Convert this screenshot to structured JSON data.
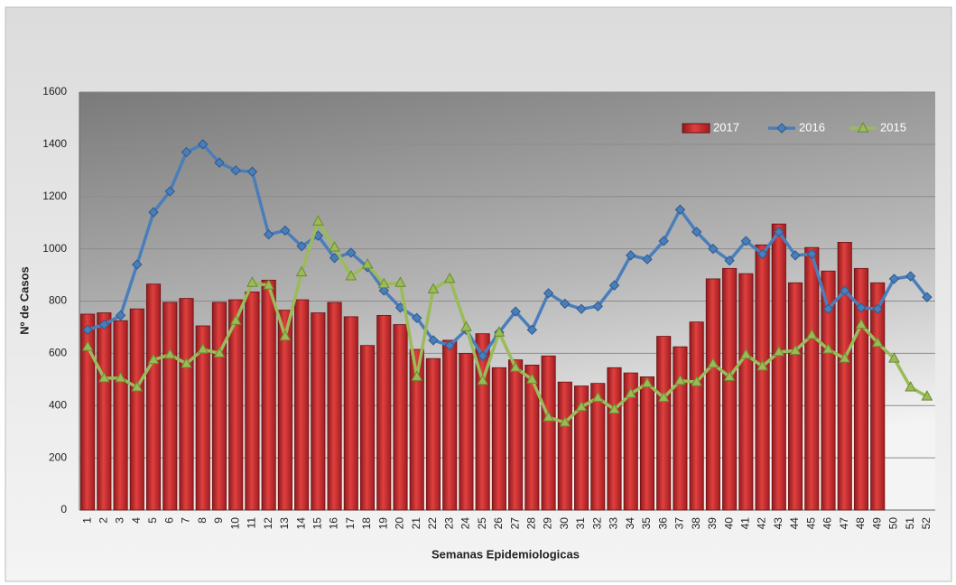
{
  "chart_data": {
    "type": "bar_line",
    "xlabel": "Semanas Epidemiologicas",
    "ylabel": "Nº de Casos",
    "categories": [
      "1",
      "2",
      "3",
      "4",
      "5",
      "6",
      "7",
      "8",
      "9",
      "10",
      "11",
      "12",
      "13",
      "14",
      "15",
      "16",
      "17",
      "18",
      "19",
      "20",
      "21",
      "22",
      "23",
      "24",
      "25",
      "26",
      "27",
      "28",
      "29",
      "30",
      "31",
      "32",
      "33",
      "34",
      "35",
      "36",
      "37",
      "38",
      "39",
      "40",
      "41",
      "42",
      "43",
      "44",
      "45",
      "46",
      "47",
      "48",
      "49",
      "50",
      "51",
      "52"
    ],
    "ylim": [
      0,
      1600
    ],
    "yticks": [
      0,
      200,
      400,
      600,
      800,
      1000,
      1200,
      1400,
      1600
    ],
    "grid": true,
    "legend": "upper right",
    "series": [
      {
        "name": "2017",
        "kind": "bar",
        "color": "#c0262a",
        "values": [
          750,
          755,
          725,
          770,
          865,
          795,
          810,
          705,
          795,
          805,
          835,
          880,
          765,
          805,
          755,
          795,
          740,
          630,
          745,
          710,
          615,
          580,
          650,
          600,
          675,
          545,
          575,
          555,
          590,
          490,
          475,
          485,
          545,
          525,
          510,
          665,
          625,
          720,
          885,
          925,
          905,
          1015,
          1095,
          870,
          1005,
          915,
          1025,
          925,
          870,
          null,
          null,
          null
        ]
      },
      {
        "name": "2016",
        "kind": "line",
        "marker": "diamond",
        "color": "#4a7ebb",
        "values": [
          690,
          710,
          745,
          940,
          1140,
          1220,
          1370,
          1400,
          1330,
          1300,
          1295,
          1055,
          1070,
          1010,
          1050,
          965,
          985,
          930,
          840,
          775,
          735,
          650,
          630,
          690,
          590,
          680,
          760,
          690,
          830,
          790,
          770,
          780,
          860,
          975,
          960,
          1030,
          1150,
          1065,
          1000,
          955,
          1030,
          980,
          1065,
          975,
          980,
          770,
          840,
          775,
          770,
          885,
          895,
          815
        ]
      },
      {
        "name": "2015",
        "kind": "line",
        "marker": "triangle",
        "color": "#9bbb59",
        "values": [
          625,
          505,
          505,
          470,
          575,
          595,
          560,
          615,
          600,
          725,
          870,
          860,
          665,
          910,
          1105,
          1005,
          895,
          940,
          865,
          870,
          510,
          845,
          885,
          700,
          495,
          680,
          545,
          500,
          355,
          335,
          395,
          430,
          385,
          445,
          485,
          430,
          495,
          490,
          560,
          510,
          595,
          550,
          605,
          610,
          670,
          615,
          580,
          710,
          640,
          580,
          470,
          435
        ]
      }
    ]
  }
}
